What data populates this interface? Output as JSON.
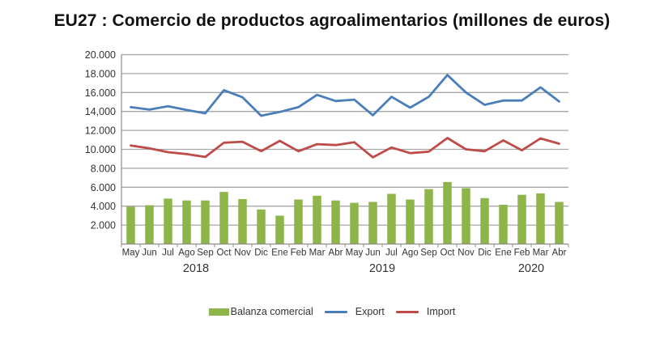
{
  "chart_data": {
    "type": "bar+line",
    "title": "EU27 : Comercio de productos agroalimentarios (millones de euros)",
    "xlabel": "",
    "ylabel": "",
    "ylim": [
      0,
      20000
    ],
    "yticks": [
      2000,
      4000,
      6000,
      8000,
      10000,
      12000,
      14000,
      16000,
      18000,
      20000
    ],
    "ytick_labels": [
      "2.000",
      "4.000",
      "6.000",
      "8.000",
      "10.000",
      "12.000",
      "14,000",
      "16.000",
      "18.000",
      "20.000"
    ],
    "grid": true,
    "categories": [
      "May",
      "Jun",
      "Jul",
      "Ago",
      "Sep",
      "Oct",
      "Nov",
      "Dic",
      "Ene",
      "Feb",
      "Mar",
      "Abr",
      "May",
      "Jun",
      "Jul",
      "Ago",
      "Sep",
      "Oct",
      "Nov",
      "Dic",
      "Ene",
      "Feb",
      "Mar",
      "Abr"
    ],
    "year_labels": [
      {
        "label": "2018",
        "from_index": 0,
        "to_index": 7
      },
      {
        "label": "2019",
        "from_index": 8,
        "to_index": 19
      },
      {
        "label": "2020",
        "from_index": 20,
        "to_index": 23
      }
    ],
    "series": [
      {
        "name": "Balanza comercial",
        "type": "bar",
        "color": "#8db54a",
        "values": [
          3950,
          4100,
          4800,
          4600,
          4600,
          5500,
          4750,
          3650,
          3000,
          4700,
          5100,
          4600,
          4350,
          4450,
          5300,
          4700,
          5800,
          6550,
          5900,
          4850,
          4150,
          5200,
          5350,
          4450
        ]
      },
      {
        "name": "Export",
        "type": "line",
        "color": "#4a7ebb",
        "values": [
          14450,
          14200,
          14550,
          14150,
          13800,
          16250,
          15500,
          13550,
          13950,
          14450,
          15750,
          15100,
          15250,
          13600,
          15550,
          14400,
          15550,
          17850,
          16000,
          14700,
          15150,
          15150,
          16550,
          15050
        ]
      },
      {
        "name": "Import",
        "type": "line",
        "color": "#be4b48",
        "values": [
          10400,
          10100,
          9700,
          9500,
          9200,
          10700,
          10800,
          9800,
          10900,
          9800,
          10550,
          10450,
          10750,
          9150,
          10200,
          9600,
          9750,
          11200,
          10000,
          9800,
          10950,
          9900,
          11150,
          10600
        ]
      }
    ],
    "legend_position": "bottom-center"
  },
  "legend": {
    "items": [
      "Balanza comercial",
      "Export",
      "Import"
    ]
  }
}
